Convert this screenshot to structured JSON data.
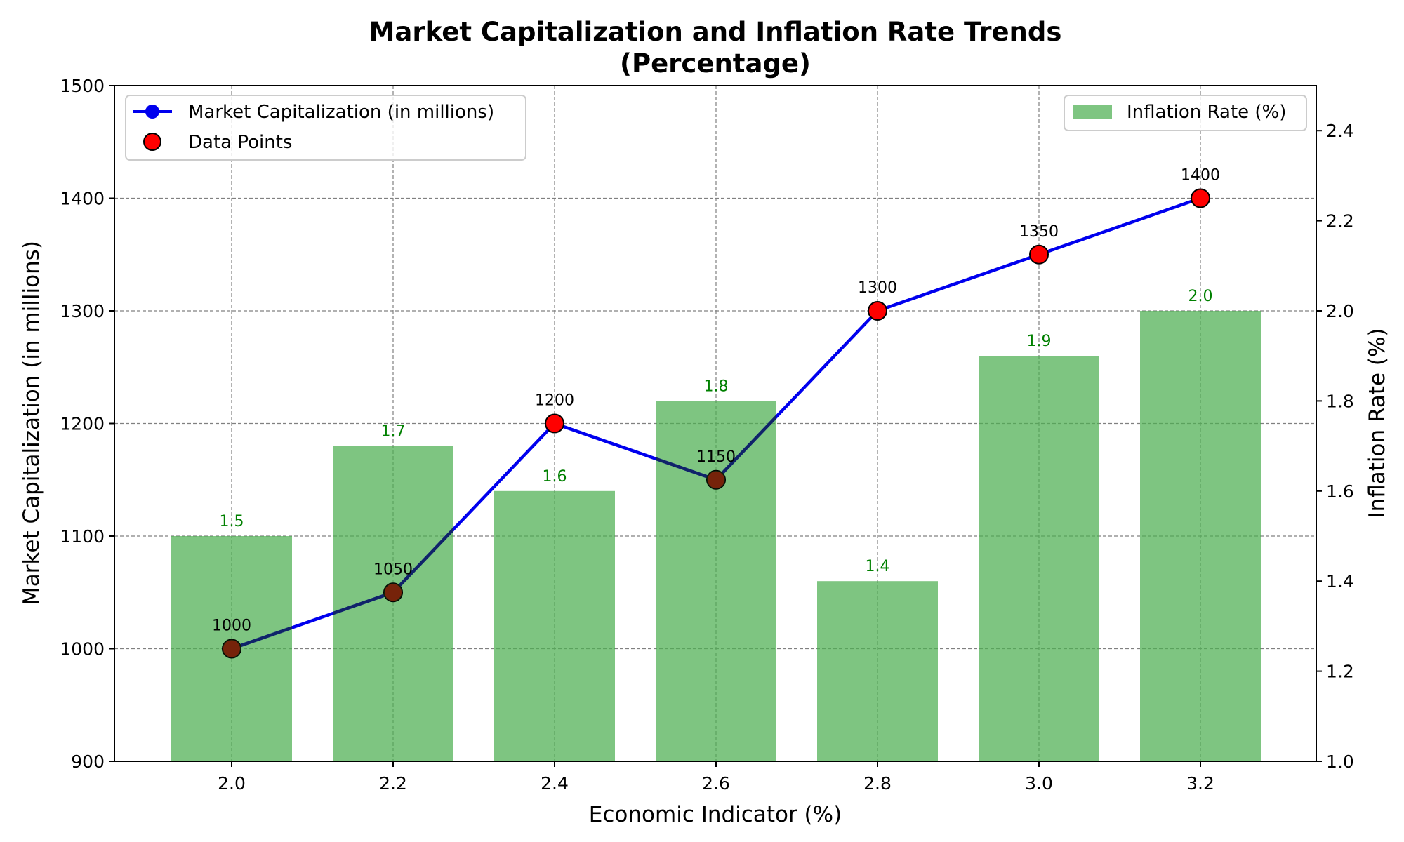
{
  "chart_data": {
    "type": "bar+line",
    "title_line1": "Market Capitalization and Inflation Rate Trends",
    "title_line2": "(Percentage)",
    "xlabel": "Economic Indicator (%)",
    "ylabel_left": "Market Capitalization (in millions)",
    "ylabel_right": "Inflation Rate (%)",
    "categories": [
      "2.0",
      "2.2",
      "2.4",
      "2.6",
      "2.8",
      "3.0",
      "3.2"
    ],
    "series": [
      {
        "name": "Market Capitalization (in millions)",
        "kind": "line",
        "axis": "left",
        "color": "#0000ee",
        "values": [
          1000,
          1050,
          1200,
          1150,
          1300,
          1350,
          1400
        ]
      },
      {
        "name": "Inflation Rate (%)",
        "kind": "bar",
        "axis": "right",
        "color": "#4caf50",
        "values": [
          1.5,
          1.7,
          1.6,
          1.8,
          1.4,
          1.9,
          2.0
        ]
      }
    ],
    "points_legend": "Data Points",
    "point_color": "#ff0000",
    "line_labels": [
      "1000",
      "1050",
      "1200",
      "1150",
      "1300",
      "1350",
      "1400"
    ],
    "bar_labels": [
      "1.5",
      "1.7",
      "1.6",
      "1.8",
      "1.4",
      "1.9",
      "2.0"
    ],
    "ylim_left": [
      900,
      1500
    ],
    "yticks_left": [
      "900",
      "1000",
      "1100",
      "1200",
      "1300",
      "1400",
      "1500"
    ],
    "ylim_right": [
      1.0,
      2.5
    ],
    "yticks_right": [
      "1.0",
      "1.2",
      "1.4",
      "1.6",
      "1.8",
      "2.0",
      "2.2",
      "2.4"
    ],
    "grid": true,
    "legend_line_placement": "upper-left",
    "legend_bar_placement": "upper-right"
  }
}
